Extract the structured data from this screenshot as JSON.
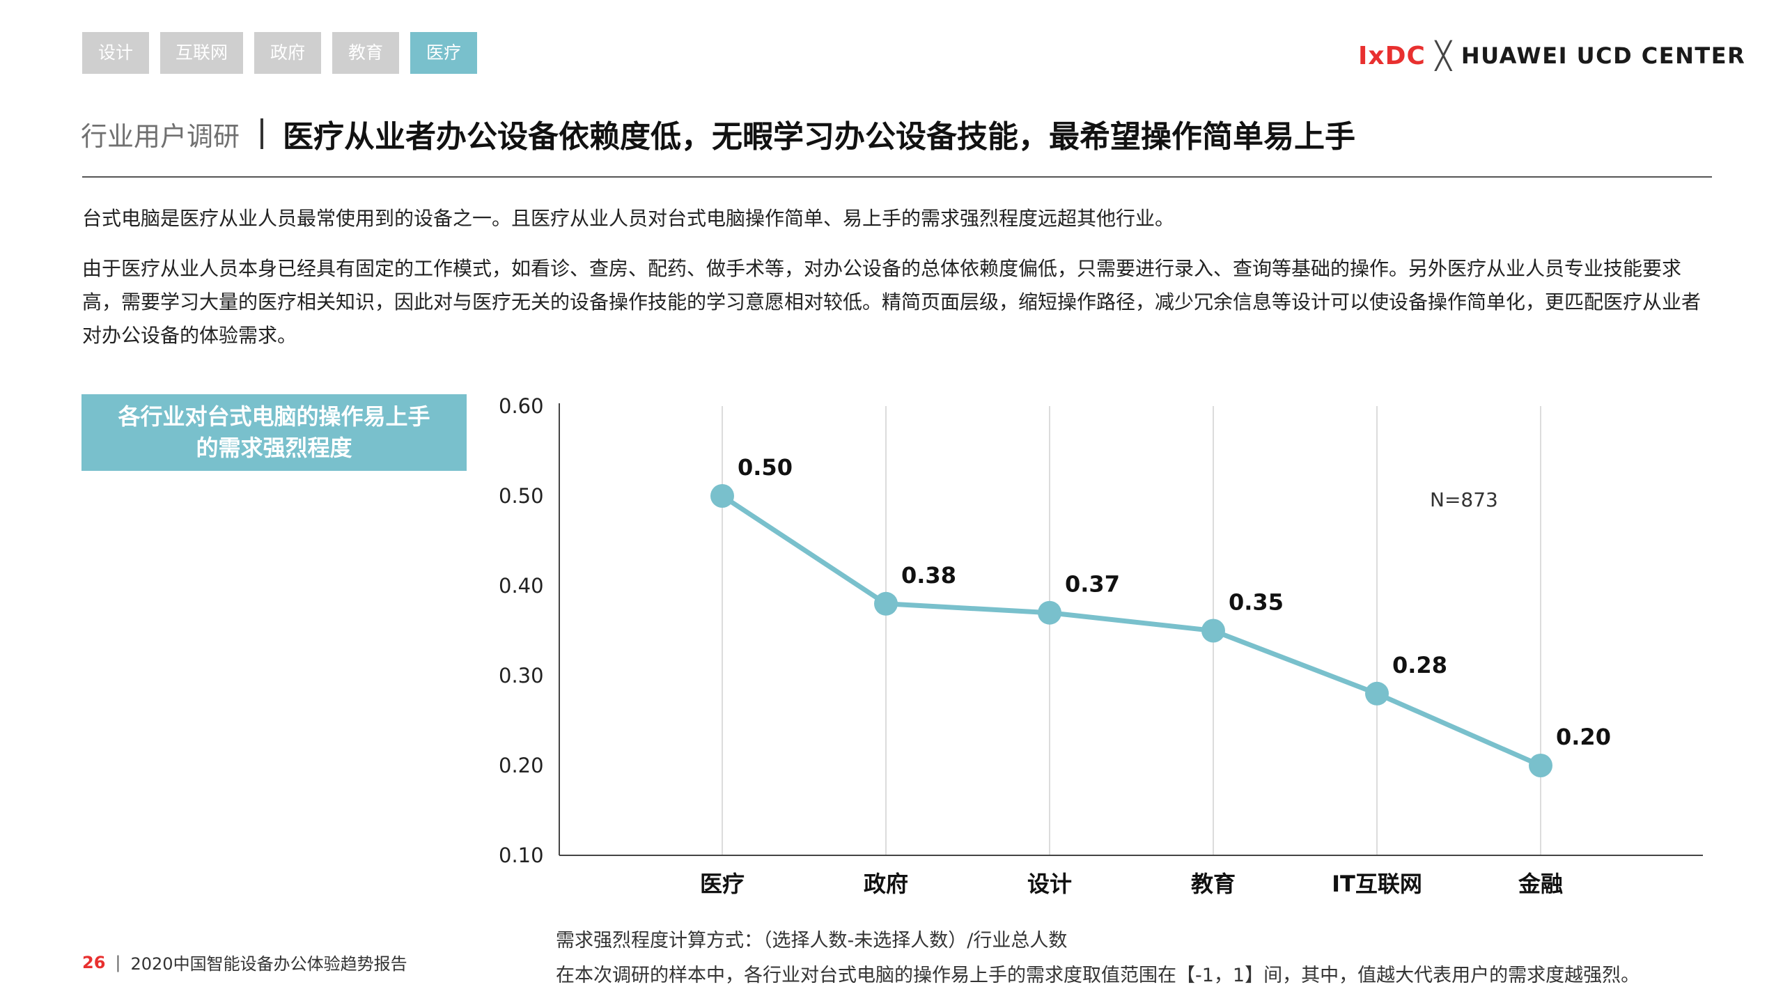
{
  "tabs": [
    {
      "label": "设计",
      "active": false
    },
    {
      "label": "互联网",
      "active": false
    },
    {
      "label": "政府",
      "active": false
    },
    {
      "label": "教育",
      "active": false
    },
    {
      "label": "医疗",
      "active": true
    }
  ],
  "logo": {
    "ixdc": "IxDC",
    "cross": "╳",
    "partner": "HUAWEI UCD CENTER"
  },
  "header": {
    "section": "行业用户调研",
    "title": "医疗从业者办公设备依赖度低，无暇学习办公设备技能，最希望操作简单易上手"
  },
  "paragraphs": [
    "台式电脑是医疗从业人员最常使用到的设备之一。且医疗从业人员对台式电脑操作简单、易上手的需求强烈程度远超其他行业。",
    "由于医疗从业人员本身已经具有固定的工作模式，如看诊、查房、配药、做手术等，对办公设备的总体依赖度偏低，只需要进行录入、查询等基础的操作。另外医疗从业人员专业技能要求高，需要学习大量的医疗相关知识，因此对与医疗无关的设备操作技能的学习意愿相对较低。精简页面层级，缩短操作路径，减少冗余信息等设计可以使设备操作简单化，更匹配医疗从业者对办公设备的体验需求。"
  ],
  "chart_tag": {
    "line1": "各行业对台式电脑的操作易上手",
    "line2": "的需求强烈程度"
  },
  "chart_data": {
    "type": "line",
    "title": "各行业对台式电脑的操作易上手的需求强烈程度",
    "categories": [
      "医疗",
      "政府",
      "设计",
      "教育",
      "IT互联网",
      "金融"
    ],
    "series": [
      {
        "name": "需求强烈程度",
        "values": [
          0.5,
          0.38,
          0.37,
          0.35,
          0.28,
          0.2
        ]
      }
    ],
    "data_labels": [
      "0.50",
      "0.38",
      "0.37",
      "0.35",
      "0.28",
      "0.20"
    ],
    "yticks": [
      "0.10",
      "0.20",
      "0.30",
      "0.40",
      "0.50",
      "0.60"
    ],
    "ylim": [
      0.1,
      0.6
    ],
    "grid": "vertical",
    "annotation": "N=873",
    "color": "#79c0cc"
  },
  "notes": [
    "需求强烈程度计算方式：（选择人数-未选择人数）/行业总人数",
    "在本次调研的样本中，各行业对台式电脑的操作易上手的需求度取值范围在【-1，1】间，其中，值越大代表用户的需求度越强烈。"
  ],
  "footer": {
    "page": "26",
    "sep": "|",
    "report": "2020中国智能设备办公体验趋势报告"
  }
}
